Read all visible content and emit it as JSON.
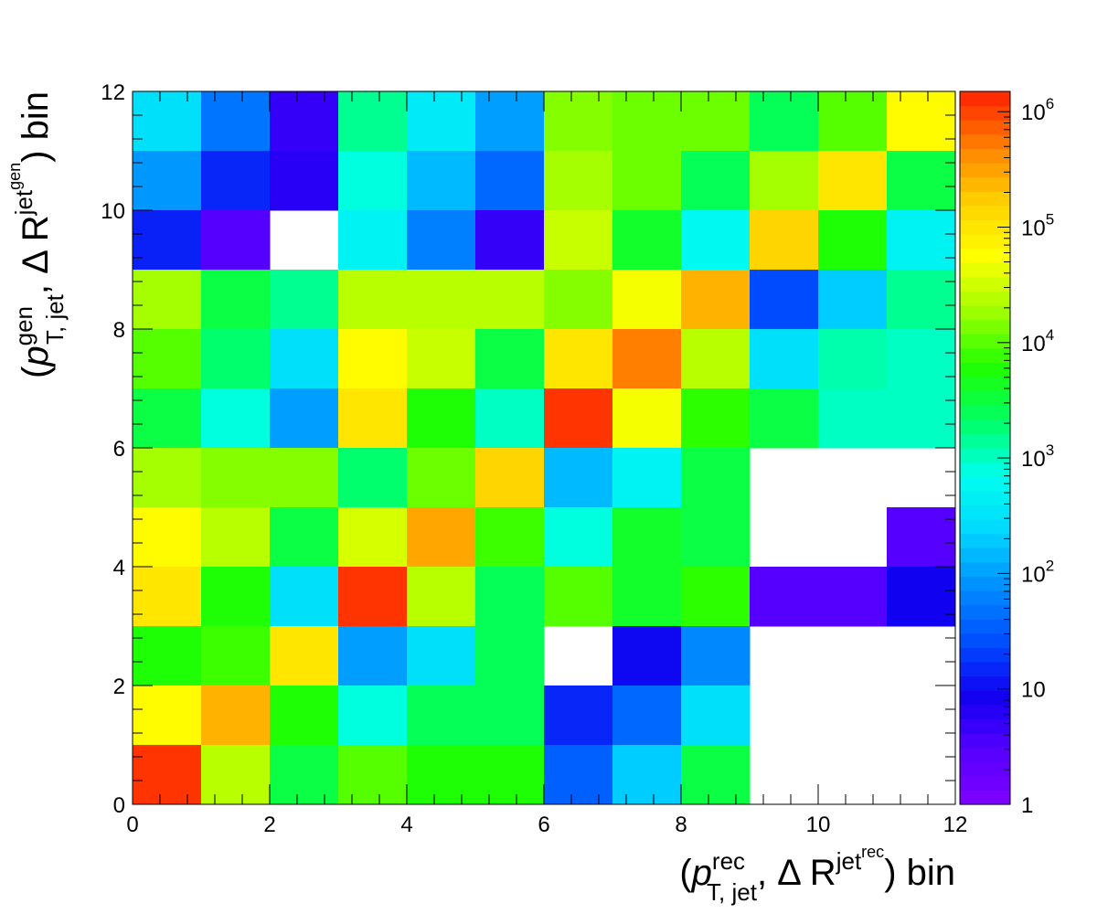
{
  "chart_data": {
    "type": "heatmap",
    "title": "",
    "xlabel": {
      "prefix": "(",
      "var": "p",
      "sup1": "rec",
      "sub1": "T, jet",
      "mid": ", Δ R",
      "sup2": "jet",
      "sup2sup": "rec",
      "suffix": ") bin"
    },
    "ylabel": {
      "prefix": "(",
      "var": "p",
      "sup1": "gen",
      "sub1": "T, jet",
      "mid": ", Δ R",
      "sup2": "jet",
      "sup2sup": "gen",
      "suffix": ") bin"
    },
    "xlim": [
      0,
      12
    ],
    "ylim": [
      0,
      12
    ],
    "x_ticks": [
      "0",
      "2",
      "4",
      "6",
      "8",
      "10",
      "12"
    ],
    "y_ticks": [
      "0",
      "2",
      "4",
      "6",
      "8",
      "10",
      "12"
    ],
    "grid": false,
    "z_scale": "log",
    "zlim": [
      1,
      1500000
    ],
    "colorbar_ticks": [
      {
        "base": "1",
        "exp": "",
        "value": 1
      },
      {
        "base": "10",
        "exp": "",
        "value": 10
      },
      {
        "base": "10",
        "exp": "2",
        "value": 100
      },
      {
        "base": "10",
        "exp": "3",
        "value": 1000
      },
      {
        "base": "10",
        "exp": "4",
        "value": 10000
      },
      {
        "base": "10",
        "exp": "5",
        "value": 100000
      },
      {
        "base": "10",
        "exp": "6",
        "value": 1000000
      }
    ],
    "palette": [
      "#8000ff",
      "#5500ff",
      "#1000f0",
      "#0050ff",
      "#0090ff",
      "#00d8ff",
      "#00ffee",
      "#00ff66",
      "#20ff00",
      "#a0ff00",
      "#ffff00",
      "#ffd000",
      "#ff8000",
      "#ff2000"
    ],
    "values_y_rows_top_to_bottom": [
      [
        300,
        50,
        5,
        1500,
        400,
        100,
        15000,
        12000,
        12000,
        2500,
        10000,
        60000
      ],
      [
        90,
        15,
        6,
        800,
        150,
        40,
        20000,
        12000,
        2500,
        20000,
        100000,
        3000
      ],
      [
        14,
        3,
        null,
        500,
        60,
        5,
        30000,
        4000,
        600,
        150000,
        6000,
        500
      ],
      [
        20000,
        3000,
        1500,
        25000,
        25000,
        25000,
        15000,
        50000,
        250000,
        25,
        200,
        1500
      ],
      [
        10000,
        2000,
        300,
        60000,
        30000,
        3000,
        100000,
        500000,
        25000,
        300,
        1200,
        1000
      ],
      [
        3000,
        800,
        100,
        100000,
        6000,
        1000,
        1200000,
        50000,
        7000,
        3000,
        1000,
        1000
      ],
      [
        20000,
        15000,
        15000,
        2000,
        12000,
        150000,
        150,
        500,
        3000,
        null,
        null,
        null
      ],
      [
        60000,
        25000,
        3000,
        35000,
        300000,
        8000,
        800,
        4000,
        3000,
        null,
        null,
        3
      ],
      [
        100000,
        6000,
        300,
        1200000,
        25000,
        2500,
        10000,
        4000,
        7000,
        3,
        3,
        9
      ],
      [
        6000,
        8000,
        100000,
        100,
        300,
        2500,
        null,
        10,
        70,
        null,
        null,
        null
      ],
      [
        60000,
        250000,
        6000,
        800,
        2500,
        2500,
        15,
        40,
        300,
        null,
        null,
        null
      ],
      [
        1200000,
        25000,
        3000,
        10000,
        6000,
        6000,
        35,
        200,
        3000,
        null,
        null,
        null
      ]
    ]
  }
}
